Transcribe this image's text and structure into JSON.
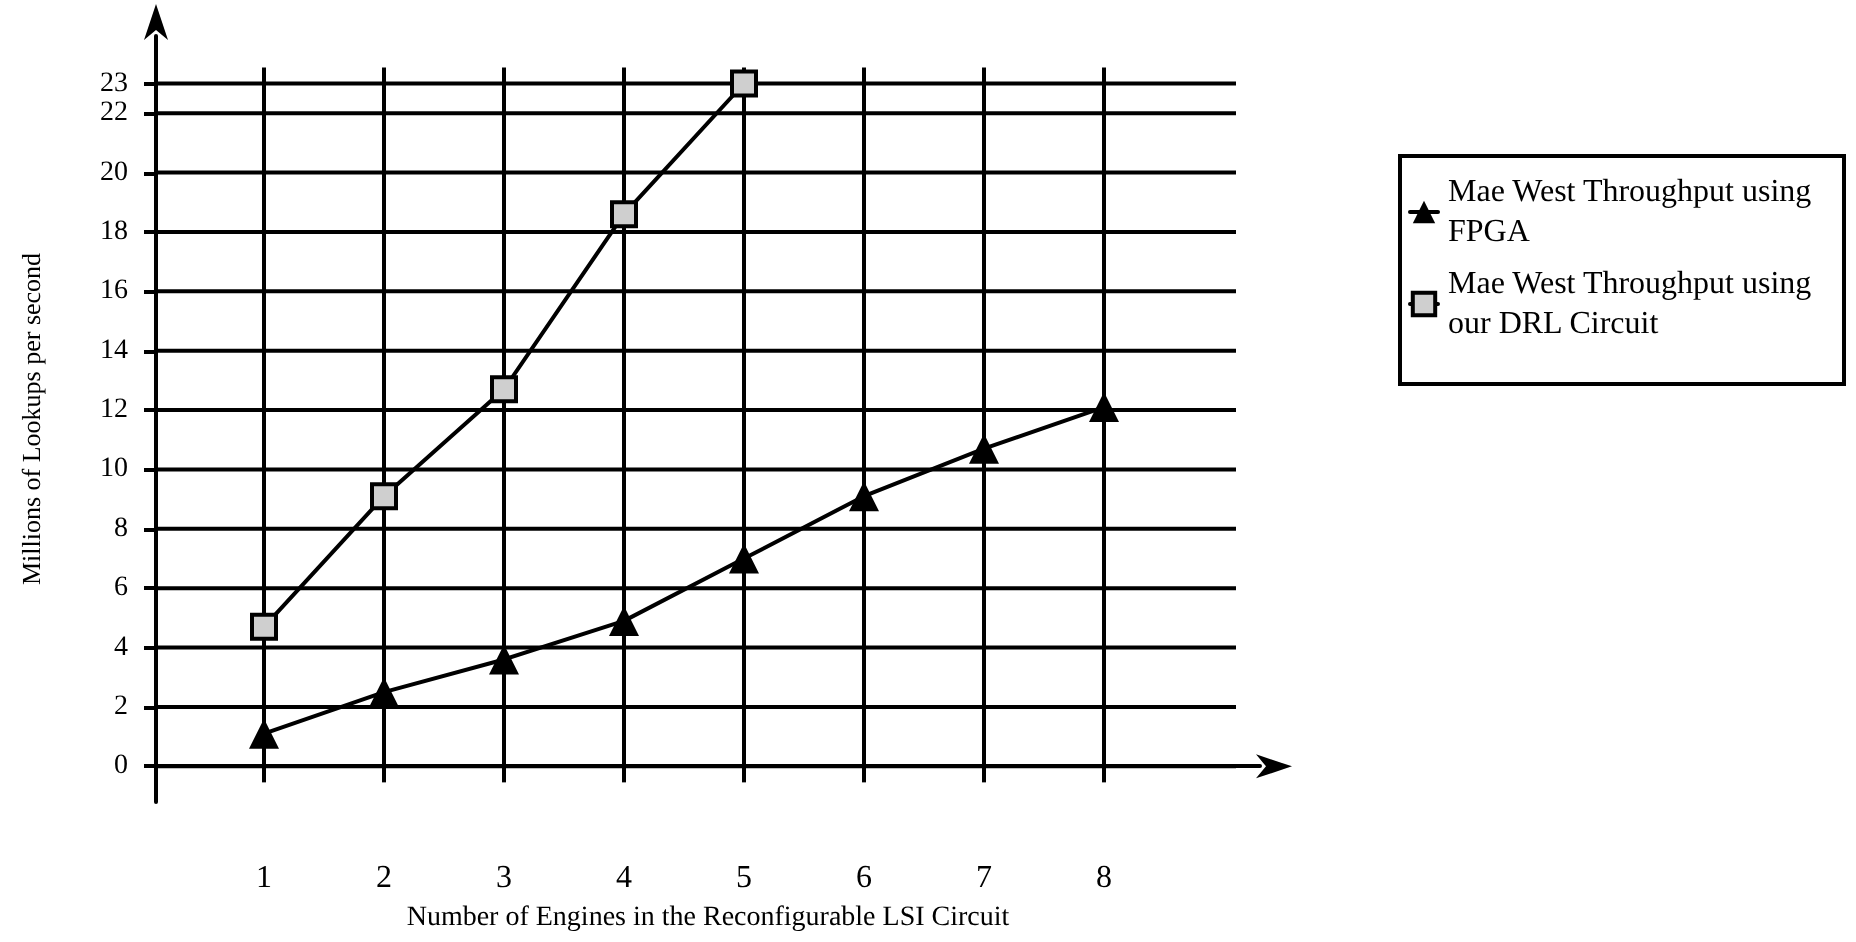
{
  "chart_data": {
    "type": "line",
    "xlabel": "Number of Engines in the Reconfigurable LSI Circuit",
    "ylabel": "Millions of Lookups per second",
    "x": [
      1,
      2,
      3,
      4,
      5,
      6,
      7,
      8
    ],
    "xlim": [
      0.1,
      9.3
    ],
    "xticks": [
      1,
      2,
      3,
      4,
      5,
      6,
      7,
      8
    ],
    "ylim": [
      -1.2,
      24.6
    ],
    "yticks": [
      0,
      2,
      4,
      6,
      8,
      10,
      12,
      14,
      16,
      18,
      20,
      22,
      23
    ],
    "series": [
      {
        "name": "Mae West Throughput using FPGA",
        "color": "#000000",
        "marker": "triangle",
        "values": [
          1.1,
          2.5,
          3.6,
          4.9,
          7.0,
          9.1,
          10.7,
          12.1
        ]
      },
      {
        "name": "Mae West Throughput using our DRL Circuit",
        "color": "#000000",
        "marker": "square",
        "values": [
          4.7,
          9.1,
          12.7,
          18.6,
          23,
          null,
          null,
          null
        ]
      }
    ],
    "grid": true,
    "legend": "right",
    "line_style": "solid"
  }
}
